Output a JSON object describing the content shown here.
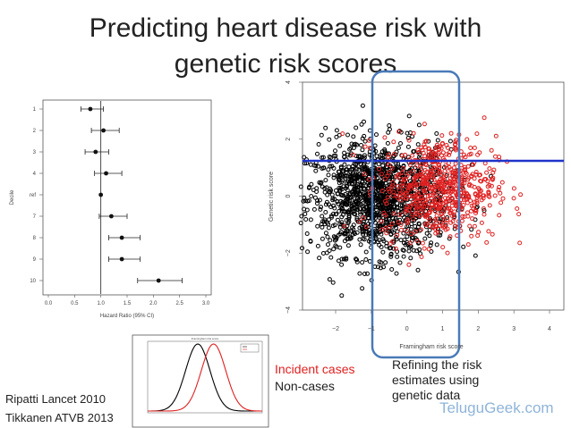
{
  "title_line1": "Predicting heart disease risk with",
  "title_line2": "genetic risk scores",
  "forest": {
    "ylabel": "Decile",
    "xlabel": "Hazard Ratio (95% CI)",
    "xticks": [
      "0.0",
      "0.5",
      "1.0",
      "1.5",
      "2.0",
      "2.5",
      "3.0"
    ]
  },
  "scatter": {
    "ylabel": "Genetic risk score",
    "xlabel": "Framingham risk score",
    "xticks": [
      "−2",
      "−1",
      "0",
      "1",
      "2",
      "3",
      "4"
    ],
    "yticks": [
      "−4",
      "−2",
      "0",
      "2",
      "4"
    ]
  },
  "density": {
    "title": "Framingham risk score"
  },
  "legend": {
    "incident": "Incident cases",
    "noncases": "Non-cases"
  },
  "note_right": [
    "Refining the risk",
    "estimates using",
    "genetic data"
  ],
  "citations": [
    "Ripatti Lancet 2010",
    "Tikkanen ATVB 2013"
  ],
  "brand": "TeluguGeek.com",
  "colors": {
    "incident": "#e02020",
    "noncase": "#000000",
    "line": "#1f33c9",
    "box": "#4a7ab8"
  },
  "chart_data": [
    {
      "type": "scatter",
      "subtype": "forest",
      "categories": [
        "1",
        "2",
        "3",
        "4",
        "ref",
        "7",
        "8",
        "9",
        "10"
      ],
      "estimate": [
        0.8,
        1.05,
        0.9,
        1.1,
        1.0,
        1.2,
        1.4,
        1.4,
        2.1
      ],
      "ci_low": [
        0.62,
        0.82,
        0.7,
        0.88,
        1.0,
        0.97,
        1.15,
        1.15,
        1.7
      ],
      "ci_high": [
        1.05,
        1.35,
        1.15,
        1.4,
        1.0,
        1.5,
        1.75,
        1.75,
        2.55
      ],
      "xlabel": "Hazard Ratio (95% CI)",
      "ylabel": "Decile",
      "xlim": [
        0.0,
        3.0
      ],
      "reference_line": 1.0
    },
    {
      "type": "scatter",
      "xlabel": "Framingham risk score",
      "ylabel": "Genetic risk score",
      "xlim": [
        -3,
        4.5
      ],
      "ylim": [
        -4,
        4
      ],
      "series": [
        {
          "name": "Non-cases",
          "color": "#000000",
          "center": [
            -0.8,
            -0.1
          ],
          "spread": [
            1.0,
            1.0
          ]
        },
        {
          "name": "Incident cases",
          "color": "#e02020",
          "center": [
            0.9,
            0.3
          ],
          "spread": [
            0.8,
            0.9
          ]
        }
      ],
      "horizontal_line_y": 1.2,
      "highlight_x_range": [
        -1.1,
        1.5
      ]
    },
    {
      "type": "line",
      "title": "Framingham risk score",
      "series": [
        {
          "name": "",
          "color": "#000000",
          "mean": -0.5,
          "sd": 0.85
        },
        {
          "name": "",
          "color": "#e02020",
          "mean": 0.6,
          "sd": 0.85
        }
      ],
      "xlim": [
        -4,
        4
      ]
    }
  ]
}
